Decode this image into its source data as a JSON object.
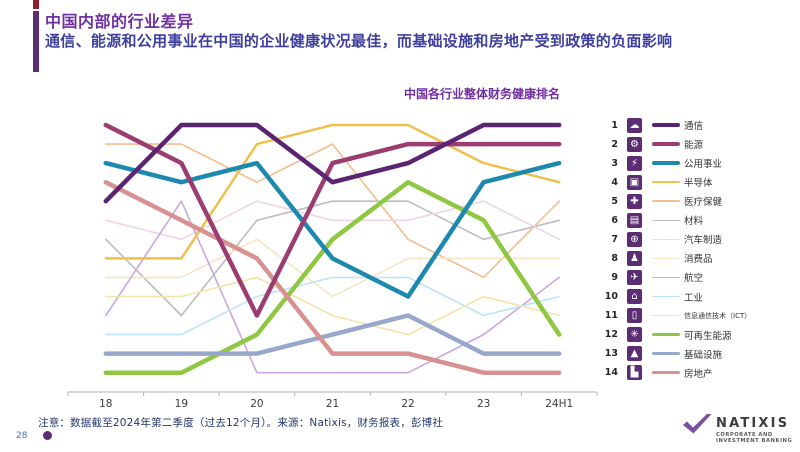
{
  "header": {
    "title": "中国内部的行业差异",
    "subtitle": "通信、能源和公用事业在中国的企业健康状况最佳，而基础设施和房地产受到政策的负面影响",
    "title_color": "#7030A0",
    "subtitle_color": "#3F3F9E",
    "accent_bar_color": "#5C2D75",
    "corner_mark_color": "#8E1F2F"
  },
  "chart_data": {
    "type": "line",
    "subtype": "bump-ranking",
    "title": "中国各行业整体财务健康排名",
    "title_color": "#7030A0",
    "x_categories": [
      "18",
      "19",
      "20",
      "21",
      "22",
      "23",
      "24H1"
    ],
    "y_meaning": "rank 1 (best) at top to rank 14 (worst) at bottom",
    "ylim": [
      1,
      14
    ],
    "grid": false,
    "legend_position": "right",
    "axis_color": "#C0C0C0",
    "icon_bg_color": "#5C2D75",
    "series": [
      {
        "name": "通信",
        "icon": "cloud-icon",
        "glyph": "☁",
        "color": "#5B2472",
        "width": 4.5,
        "z": 6,
        "final_rank": 1,
        "ranks": [
          5,
          1,
          1,
          4,
          3,
          1,
          1
        ]
      },
      {
        "name": "能源",
        "icon": "oil-pump-icon",
        "glyph": "⚙",
        "color": "#9C3D72",
        "width": 4.5,
        "z": 5,
        "final_rank": 2,
        "ranks": [
          1,
          3,
          11,
          3,
          2,
          2,
          2
        ]
      },
      {
        "name": "公用事业",
        "icon": "power-icon",
        "glyph": "⚡",
        "color": "#1E89AE",
        "width": 4.5,
        "z": 4,
        "final_rank": 3,
        "ranks": [
          3,
          4,
          3,
          8,
          10,
          4,
          3
        ]
      },
      {
        "name": "半导体",
        "icon": "chip-icon",
        "glyph": "▣",
        "color": "#EFC04B",
        "width": 2.5,
        "z": 2,
        "final_rank": 4,
        "ranks": [
          8,
          8,
          2,
          1,
          1,
          3,
          4
        ]
      },
      {
        "name": "医疗保健",
        "icon": "medical-cross-icon",
        "glyph": "✚",
        "color": "#F4BE8D",
        "width": 1.6,
        "z": 1,
        "final_rank": 5,
        "ranks": [
          2,
          2,
          4,
          2,
          7,
          9,
          5
        ]
      },
      {
        "name": "材料",
        "icon": "materials-icon",
        "glyph": "▤",
        "color": "#BDBDBD",
        "width": 1.6,
        "z": 1,
        "final_rank": 6,
        "ranks": [
          7,
          11,
          6,
          5,
          5,
          7,
          6
        ]
      },
      {
        "name": "汽车制造",
        "icon": "car-icon",
        "glyph": "⊕",
        "color": "#EFD5E5",
        "width": 1.6,
        "z": 1,
        "final_rank": 7,
        "ranks": [
          6,
          7,
          5,
          6,
          6,
          5,
          7
        ]
      },
      {
        "name": "消费品",
        "icon": "consumer-goods-icon",
        "glyph": "♟",
        "color": "#F6E6C4",
        "width": 1.6,
        "z": 1,
        "final_rank": 8,
        "ranks": [
          9,
          9,
          7,
          10,
          8,
          8,
          8
        ]
      },
      {
        "name": "航空",
        "icon": "airplane-icon",
        "glyph": "✈",
        "color": "#C7A7DF",
        "width": 1.6,
        "z": 1,
        "final_rank": 9,
        "ranks": [
          11,
          5,
          14,
          14,
          14,
          12,
          9
        ]
      },
      {
        "name": "工业",
        "icon": "factory-icon",
        "glyph": "⌂",
        "color": "#BCE4F6",
        "width": 1.6,
        "z": 1,
        "final_rank": 10,
        "ranks": [
          12,
          12,
          10,
          9,
          9,
          11,
          10
        ]
      },
      {
        "name": "信息通信技术（ICT）",
        "icon": "tablet-icon",
        "glyph": "▯",
        "color": "#F3E5A9",
        "width": 1.6,
        "z": 1,
        "final_rank": 11,
        "small_label": true,
        "ranks": [
          10,
          10,
          9,
          11,
          12,
          10,
          11
        ]
      },
      {
        "name": "可再生能源",
        "icon": "wind-turbine-icon",
        "glyph": "✳",
        "color": "#8EC741",
        "width": 4.5,
        "z": 3,
        "final_rank": 12,
        "ranks": [
          14,
          14,
          12,
          7,
          4,
          6,
          12
        ]
      },
      {
        "name": "基础设施",
        "icon": "road-icon",
        "glyph": "▲",
        "color": "#98A8CC",
        "width": 4.5,
        "z": 3,
        "final_rank": 13,
        "ranks": [
          13,
          13,
          13,
          12,
          11,
          13,
          13
        ]
      },
      {
        "name": "房地产",
        "icon": "buildings-icon",
        "glyph": "▙",
        "color": "#D89090",
        "width": 4.5,
        "z": 3,
        "final_rank": 14,
        "ranks": [
          4,
          6,
          8,
          13,
          13,
          14,
          14
        ]
      }
    ]
  },
  "footer": {
    "note": "注意：数据截至2024年第二季度（过去12个月）。来源：Natixis，财务报表，彭博社",
    "note_color": "#24356B",
    "page_number": "28",
    "dot_color": "#5C2D75"
  },
  "logo": {
    "name": "NATIXIS",
    "subtitle_line1": "CORPORATE AND",
    "subtitle_line2": "INVESTMENT BANKING",
    "mark_color": "#7C4FA0"
  }
}
